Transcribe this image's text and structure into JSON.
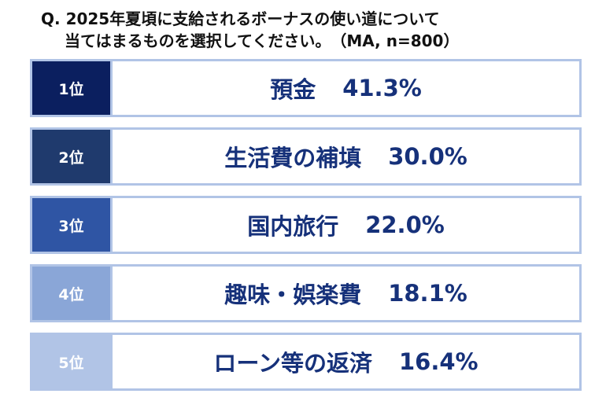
{
  "question": {
    "line1": "Q. 2025年夏頃に支給されるボーナスの使い道について",
    "line2": "当てはまるものを選択してください。　（MA, n=800）"
  },
  "chart_data": {
    "type": "table",
    "unit": "%",
    "rows": [
      {
        "rank": "1位",
        "label": "預金",
        "value": 41.3,
        "value_text": "41.3%",
        "color": "#0b1f5f"
      },
      {
        "rank": "2位",
        "label": "生活費の補填",
        "value": 30.0,
        "value_text": "30.0%",
        "color": "#1f3a6d"
      },
      {
        "rank": "3位",
        "label": "国内旅行",
        "value": 22.0,
        "value_text": "22.0%",
        "color": "#2f55a4"
      },
      {
        "rank": "4位",
        "label": "趣味・娯楽費",
        "value": 18.1,
        "value_text": "18.1%",
        "color": "#8aa6d7"
      },
      {
        "rank": "5位",
        "label": "ローン等の返済",
        "value": 16.4,
        "value_text": "16.4%",
        "color": "#b1c4e6"
      }
    ]
  }
}
